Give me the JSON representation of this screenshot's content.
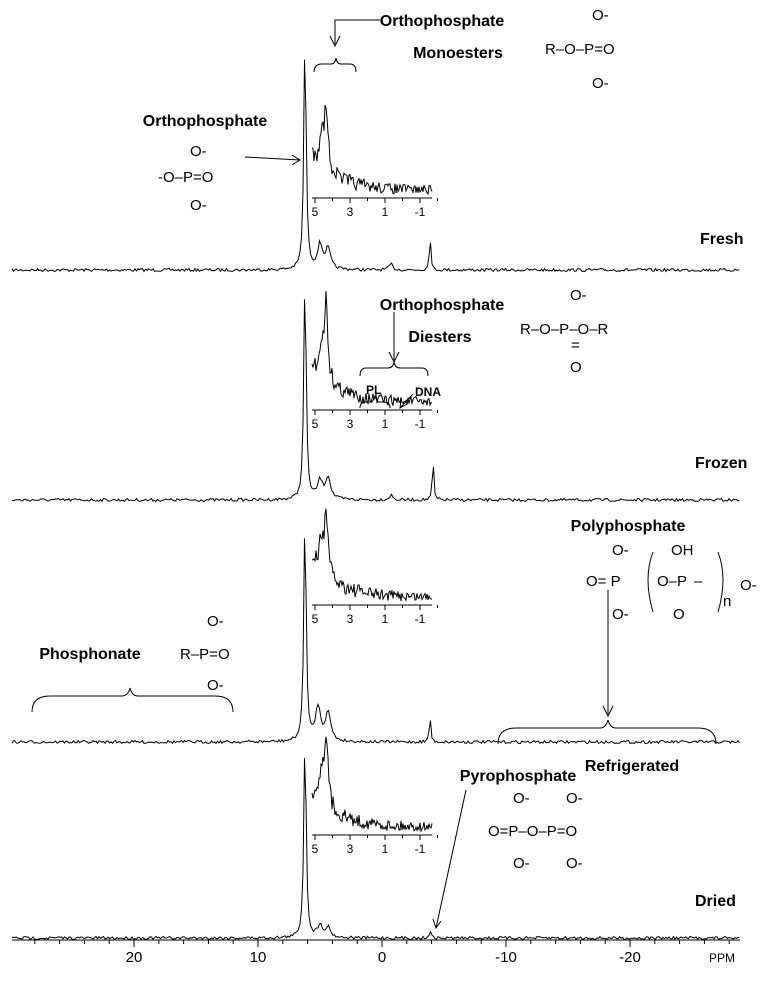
{
  "figure": {
    "labels": {
      "orthophosphate": "Orthophosphate",
      "monoesters_1": "Orthophosphate",
      "monoesters_2": "Monoesters",
      "diesters_1": "Orthophosphate",
      "diesters_2": "Diesters",
      "pl": "PL",
      "dna": "DNA",
      "phosphonate": "Phosphonate",
      "polyphosphate": "Polyphosphate",
      "pyrophosphate": "Pyrophosphate"
    },
    "samples": [
      "Fresh",
      "Frozen",
      "Refrigerated",
      "Dried"
    ],
    "structures": {
      "ortho": [
        "O-",
        "-O–P=O",
        "O-"
      ],
      "mono": [
        "O-",
        "R–O–P=O",
        "O-"
      ],
      "di": [
        "O-",
        "R–O–P–O–R",
        "=",
        "O"
      ],
      "phosphonate": [
        "O-",
        "R–P=O",
        "O-"
      ],
      "poly": [
        "O-",
        "O= P",
        "O–P",
        "OH",
        "–",
        "O-",
        "O-",
        "O",
        "n"
      ],
      "pyro": [
        "O-",
        "O-",
        "O=P–O–P=O",
        "O-",
        "O-"
      ]
    },
    "axis": {
      "ticks": [
        20,
        10,
        0,
        -10,
        -20
      ],
      "unit": "PPM"
    },
    "inset_ticks": [
      5,
      3,
      1,
      -1
    ]
  }
}
